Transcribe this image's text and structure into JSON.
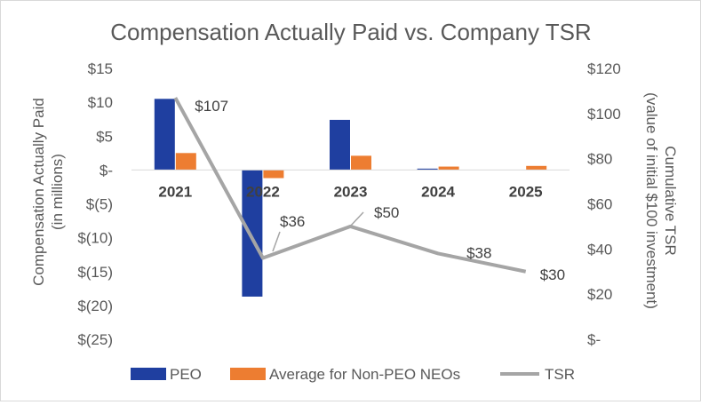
{
  "chart_data": {
    "type": "bar",
    "title": "Compensation Actually Paid vs. Company TSR",
    "categories": [
      "2021",
      "2022",
      "2023",
      "2024",
      "2025"
    ],
    "ylabel": "Compensation Actually Paid",
    "ylabel_sub": "(in millions)",
    "y2label": "Cumulative TSR",
    "y2label_sub": "(value of initial $100 investment)",
    "ylim": [
      -25,
      15
    ],
    "y_ticks": [
      15,
      10,
      5,
      0,
      -5,
      -10,
      -15,
      -20,
      -25
    ],
    "y_tick_labels": [
      "$15",
      "$10",
      "$5",
      "$-",
      "$(5)",
      "$(10)",
      "$(15)",
      "$(20)",
      "$(25)"
    ],
    "y2lim": [
      0,
      120
    ],
    "y2_ticks": [
      120,
      100,
      80,
      60,
      40,
      20,
      0
    ],
    "y2_tick_labels": [
      "$120",
      "$100",
      "$80",
      "$60",
      "$40",
      "$20",
      "$-"
    ],
    "grid": false,
    "legend_position": "bottom",
    "series": [
      {
        "name": "PEO",
        "type": "bar",
        "axis": "left",
        "color": "#1f3fa0",
        "values": [
          10.5,
          -18.7,
          7.4,
          0.2,
          0.0
        ]
      },
      {
        "name": "Average for Non-PEO NEOs",
        "type": "bar",
        "axis": "left",
        "color": "#ed7d31",
        "values": [
          2.5,
          -1.2,
          2.1,
          0.5,
          0.6
        ]
      },
      {
        "name": "TSR",
        "type": "line",
        "axis": "right",
        "color": "#a5a5a5",
        "values": [
          107,
          36,
          50,
          38,
          30
        ],
        "labels": [
          "$107",
          "$36",
          "$50",
          "$38",
          "$30"
        ]
      }
    ]
  }
}
